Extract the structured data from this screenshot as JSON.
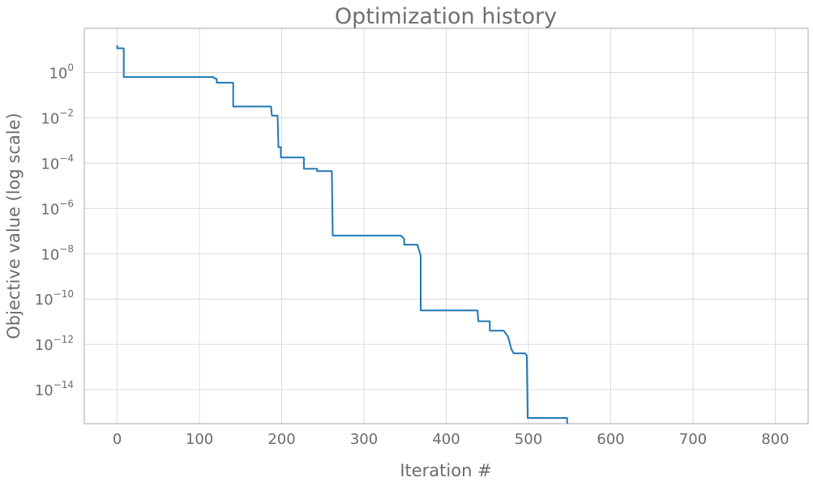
{
  "chart_data": {
    "type": "line",
    "title": "Optimization history",
    "xlabel": "Iteration #",
    "ylabel": "Objective value (log scale)",
    "y_scale": "log",
    "grid": true,
    "xlim": [
      -40,
      840
    ],
    "ylim_log10": [
      -15.5,
      1.95
    ],
    "x_ticks": [
      0,
      100,
      200,
      300,
      400,
      500,
      600,
      700,
      800
    ],
    "y_ticks": [
      {
        "base": "10",
        "exp": "0"
      },
      {
        "base": "10",
        "exp": "−2"
      },
      {
        "base": "10",
        "exp": "−4"
      },
      {
        "base": "10",
        "exp": "−6"
      },
      {
        "base": "10",
        "exp": "−8"
      },
      {
        "base": "10",
        "exp": "−10"
      },
      {
        "base": "10",
        "exp": "−12"
      },
      {
        "base": "10",
        "exp": "−14"
      }
    ],
    "line_color": "#1f77b4",
    "series": [
      {
        "x": [
          0,
          0,
          8,
          8,
          117,
          118,
          121,
          121,
          141,
          141,
          187,
          188,
          195,
          196,
          199,
          199,
          227,
          227,
          243,
          243,
          261,
          262,
          345,
          349,
          349,
          365,
          367,
          368,
          369,
          369,
          438,
          439,
          453,
          453,
          470,
          475,
          477,
          479,
          482,
          496,
          498,
          499,
          547,
          547
        ],
        "log10_y": [
          1.2,
          1.07,
          1.07,
          -0.2,
          -0.2,
          -0.25,
          -0.28,
          -0.45,
          -0.45,
          -1.5,
          -1.5,
          -1.9,
          -1.9,
          -3.3,
          -3.3,
          -3.75,
          -3.75,
          -4.25,
          -4.25,
          -4.35,
          -4.35,
          -7.2,
          -7.2,
          -7.35,
          -7.6,
          -7.6,
          -7.85,
          -7.95,
          -8.1,
          -10.5,
          -10.5,
          -10.98,
          -10.98,
          -11.4,
          -11.4,
          -11.65,
          -11.9,
          -12.2,
          -12.4,
          -12.4,
          -12.5,
          -15.25,
          -15.25,
          -15.5
        ]
      }
    ]
  }
}
